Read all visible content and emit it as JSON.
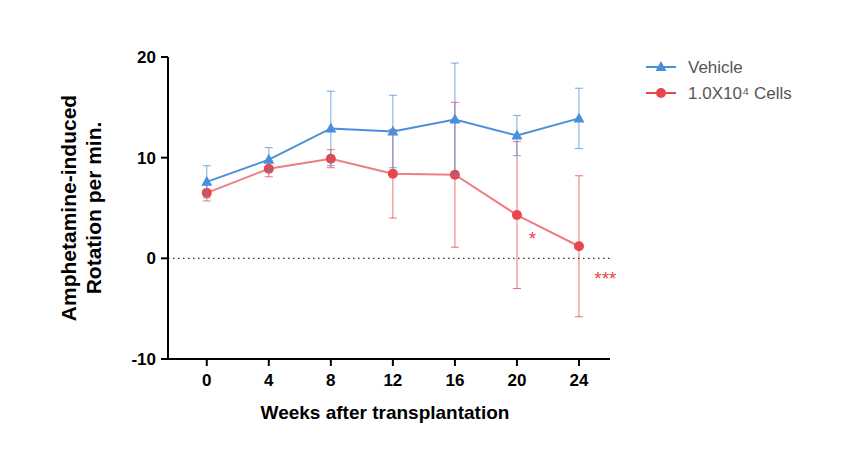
{
  "chart_data": {
    "type": "line",
    "y_label": "Amphetamine-induced\nRotation per min.",
    "x_label": "Weeks after transplantation",
    "x": [
      0,
      4,
      8,
      12,
      16,
      20,
      24
    ],
    "xlim": [
      -2.5,
      26
    ],
    "xticks": [
      0,
      4,
      8,
      12,
      16,
      20,
      24
    ],
    "ylim": [
      -10,
      20
    ],
    "yticks": [
      -10,
      0,
      10,
      20
    ],
    "reference_lines": [
      0
    ],
    "legend": "right",
    "series": [
      {
        "name": "Vehicle",
        "color": "#4a8fdb",
        "marker": "triangle",
        "values": [
          7.6,
          9.8,
          12.9,
          12.6,
          13.8,
          12.2,
          13.9
        ],
        "errors": [
          1.6,
          1.2,
          3.7,
          3.6,
          5.6,
          2.0,
          3.0
        ]
      },
      {
        "name": "1.0X10⁴ Cells",
        "color": "#e8464b",
        "marker": "circle",
        "values": [
          6.5,
          8.9,
          9.9,
          8.4,
          8.3,
          4.3,
          1.2
        ],
        "errors": [
          0.8,
          0.8,
          0.9,
          4.4,
          7.2,
          7.3,
          7.0
        ]
      }
    ],
    "annotations": [
      {
        "text": "*",
        "x": 21.0,
        "y": 2.1
      },
      {
        "text": "***",
        "x": 25.7,
        "y": -1.9
      }
    ]
  }
}
